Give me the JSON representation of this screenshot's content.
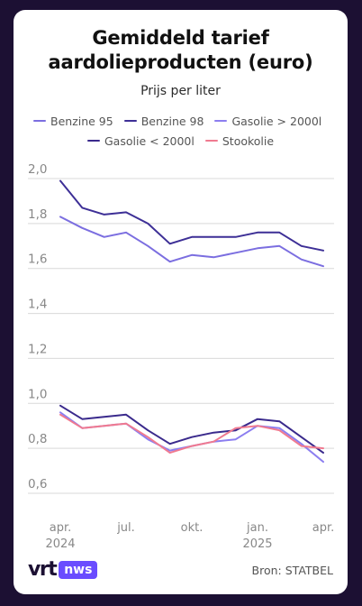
{
  "card": {
    "title_line1": "Gemiddeld tarief",
    "title_line2": "aardolieproducten (euro)",
    "subtitle": "Prijs per liter"
  },
  "footer": {
    "logo_vrt": "vrt",
    "logo_nws": "nws",
    "source": "Bron: STATBEL"
  },
  "colors": {
    "benzine95": "#7b6ee0",
    "benzine98": "#3d2f96",
    "gasolie_groot": "#8c7ef0",
    "gasolie_klein": "#3a2a8c",
    "stookolie": "#f07a90",
    "grid": "#d9d9d9",
    "axis_text": "#888888"
  },
  "chart_data": {
    "type": "line",
    "title": "Gemiddeld tarief aardolieproducten (euro)",
    "subtitle": "Prijs per liter",
    "x": [
      "2024-04",
      "2024-05",
      "2024-06",
      "2024-07",
      "2024-08",
      "2024-09",
      "2024-10",
      "2024-11",
      "2024-12",
      "2025-01",
      "2025-02",
      "2025-03",
      "2025-04"
    ],
    "x_ticks": [
      {
        "month": "2024-04",
        "label": "apr.",
        "sublabel": "2024"
      },
      {
        "month": "2024-07",
        "label": "jul.",
        "sublabel": ""
      },
      {
        "month": "2024-10",
        "label": "okt.",
        "sublabel": ""
      },
      {
        "month": "2025-01",
        "label": "jan.",
        "sublabel": "2025"
      },
      {
        "month": "2025-04",
        "label": "apr.",
        "sublabel": ""
      }
    ],
    "y_ticks": [
      "0,6",
      "0,8",
      "1,0",
      "1,2",
      "1,4",
      "1,6",
      "1,8",
      "2,0"
    ],
    "ylim": [
      0.6,
      2.0
    ],
    "grid": true,
    "legend_position": "top",
    "series": [
      {
        "name": "Benzine 95",
        "color": "#7b6ee0",
        "values": [
          1.83,
          1.78,
          1.74,
          1.76,
          1.7,
          1.63,
          1.66,
          1.65,
          1.67,
          1.69,
          1.7,
          1.64,
          1.61
        ]
      },
      {
        "name": "Benzine 98",
        "color": "#3d2f96",
        "values": [
          1.99,
          1.87,
          1.84,
          1.85,
          1.8,
          1.71,
          1.74,
          1.74,
          1.74,
          1.76,
          1.76,
          1.7,
          1.68
        ]
      },
      {
        "name": "Gasolie > 2000l",
        "color": "#8c7ef0",
        "values": [
          0.96,
          0.89,
          0.9,
          0.91,
          0.84,
          0.79,
          0.81,
          0.83,
          0.84,
          0.9,
          0.89,
          0.82,
          0.74
        ]
      },
      {
        "name": "Gasolie < 2000l",
        "color": "#3a2a8c",
        "values": [
          0.99,
          0.93,
          0.94,
          0.95,
          0.88,
          0.82,
          0.85,
          0.87,
          0.88,
          0.93,
          0.92,
          0.85,
          0.78
        ]
      },
      {
        "name": "Stookolie",
        "color": "#f07a90",
        "values": [
          0.95,
          0.89,
          0.9,
          0.91,
          0.85,
          0.78,
          0.81,
          0.83,
          0.89,
          0.9,
          0.88,
          0.81,
          0.8
        ]
      }
    ]
  }
}
